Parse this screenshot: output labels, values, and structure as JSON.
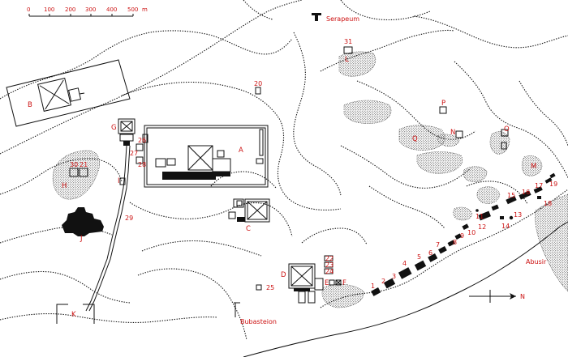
{
  "scale": {
    "ticks": [
      "0",
      "100",
      "200",
      "300",
      "400",
      "500"
    ],
    "unit": "m"
  },
  "named_places": {
    "serapeum": "Serapeum",
    "bubasteion": "Bubasteion",
    "abusir": "Abusir",
    "north": "N"
  },
  "letter_labels": {
    "A": "A",
    "B": "B",
    "C": "C",
    "D": "D",
    "E": "E",
    "F": "F",
    "G": "G",
    "H": "H",
    "I": "I",
    "J": "J",
    "K": "K",
    "L": "L",
    "M": "M",
    "N": "N",
    "O": "O",
    "P": "P",
    "Q": "Q"
  },
  "number_labels": {
    "n1": "1",
    "n2": "2",
    "n3": "3",
    "n4": "4",
    "n5": "5",
    "n6": "6",
    "n7": "7",
    "n8": "8",
    "n9": "9",
    "n10": "10",
    "n11": "11",
    "n12": "12",
    "n13": "13",
    "n14": "14",
    "n15": "15",
    "n16": "16",
    "n17": "17",
    "n18": "18",
    "n19": "19",
    "n20": "20",
    "n21": "21",
    "n22": "22",
    "n23": "23",
    "n24": "24",
    "n25": "25",
    "n26": "26",
    "n27": "27",
    "n28": "28",
    "n29": "29",
    "n30": "30",
    "n31": "31"
  },
  "colors": {
    "label": "#cc1111",
    "ink": "#111111",
    "background": "#ffffff"
  }
}
